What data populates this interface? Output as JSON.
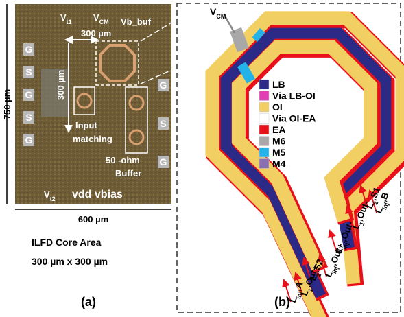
{
  "micrograph": {
    "vt1": {
      "base": "V",
      "sub": "t1"
    },
    "vcm": {
      "base": "V",
      "sub": "CM"
    },
    "vb_buf": "Vb_buf",
    "width_dim": "300 µm",
    "height_dim": "300 µm",
    "left_pads": [
      "G",
      "S",
      "G",
      "S",
      "G"
    ],
    "right_pads": [
      "G",
      "S",
      "G"
    ],
    "input_matching": [
      "Input",
      "matching"
    ],
    "buffer": [
      "50 -ohm",
      "Buffer"
    ],
    "vt2": {
      "base": "V",
      "sub": "t2"
    },
    "supplies": "vdd vbias",
    "chip_height": "750 µm",
    "chip_width": "600 µm",
    "core_area_title": "ILFD Core Area",
    "core_area_size": "300 µm x 300 µm",
    "caption": "(a)"
  },
  "layout": {
    "vcm": {
      "base": "V",
      "sub": "CM"
    },
    "legend": [
      {
        "label": "LB",
        "color": "#2b2a86"
      },
      {
        "label": "Via LB-OI",
        "color": "#e23fb4"
      },
      {
        "label": "OI",
        "color": "#f2cf62"
      },
      {
        "label": "Via OI-EA",
        "color": "#ffffff"
      },
      {
        "label": "EA",
        "color": "#e8101a"
      },
      {
        "label": "M6",
        "color": "#a8a8a8"
      },
      {
        "label": "M5",
        "color": "#23b3e8"
      },
      {
        "label": "M4",
        "color": "#8a6fb0"
      }
    ],
    "ports": [
      {
        "base": "L",
        "sub": "inj",
        "suffix": ",B"
      },
      {
        "base": "L",
        "sub": "2",
        "suffix": ",S1"
      },
      {
        "base": "L",
        "sub": "1",
        "suffix": ",Out-"
      },
      {
        "base": "L",
        "sub": "inj",
        "suffix": ",Out-"
      },
      {
        "base": "L",
        "sub": "inj",
        "suffix": ",Out+"
      },
      {
        "base": "L",
        "sub": "2",
        "suffix": ",S2"
      },
      {
        "base": "L",
        "sub": "1",
        "suffix": ",Out+"
      },
      {
        "base": "L",
        "sub": "inj",
        "suffix": ",A"
      }
    ],
    "caption": "(b)"
  }
}
